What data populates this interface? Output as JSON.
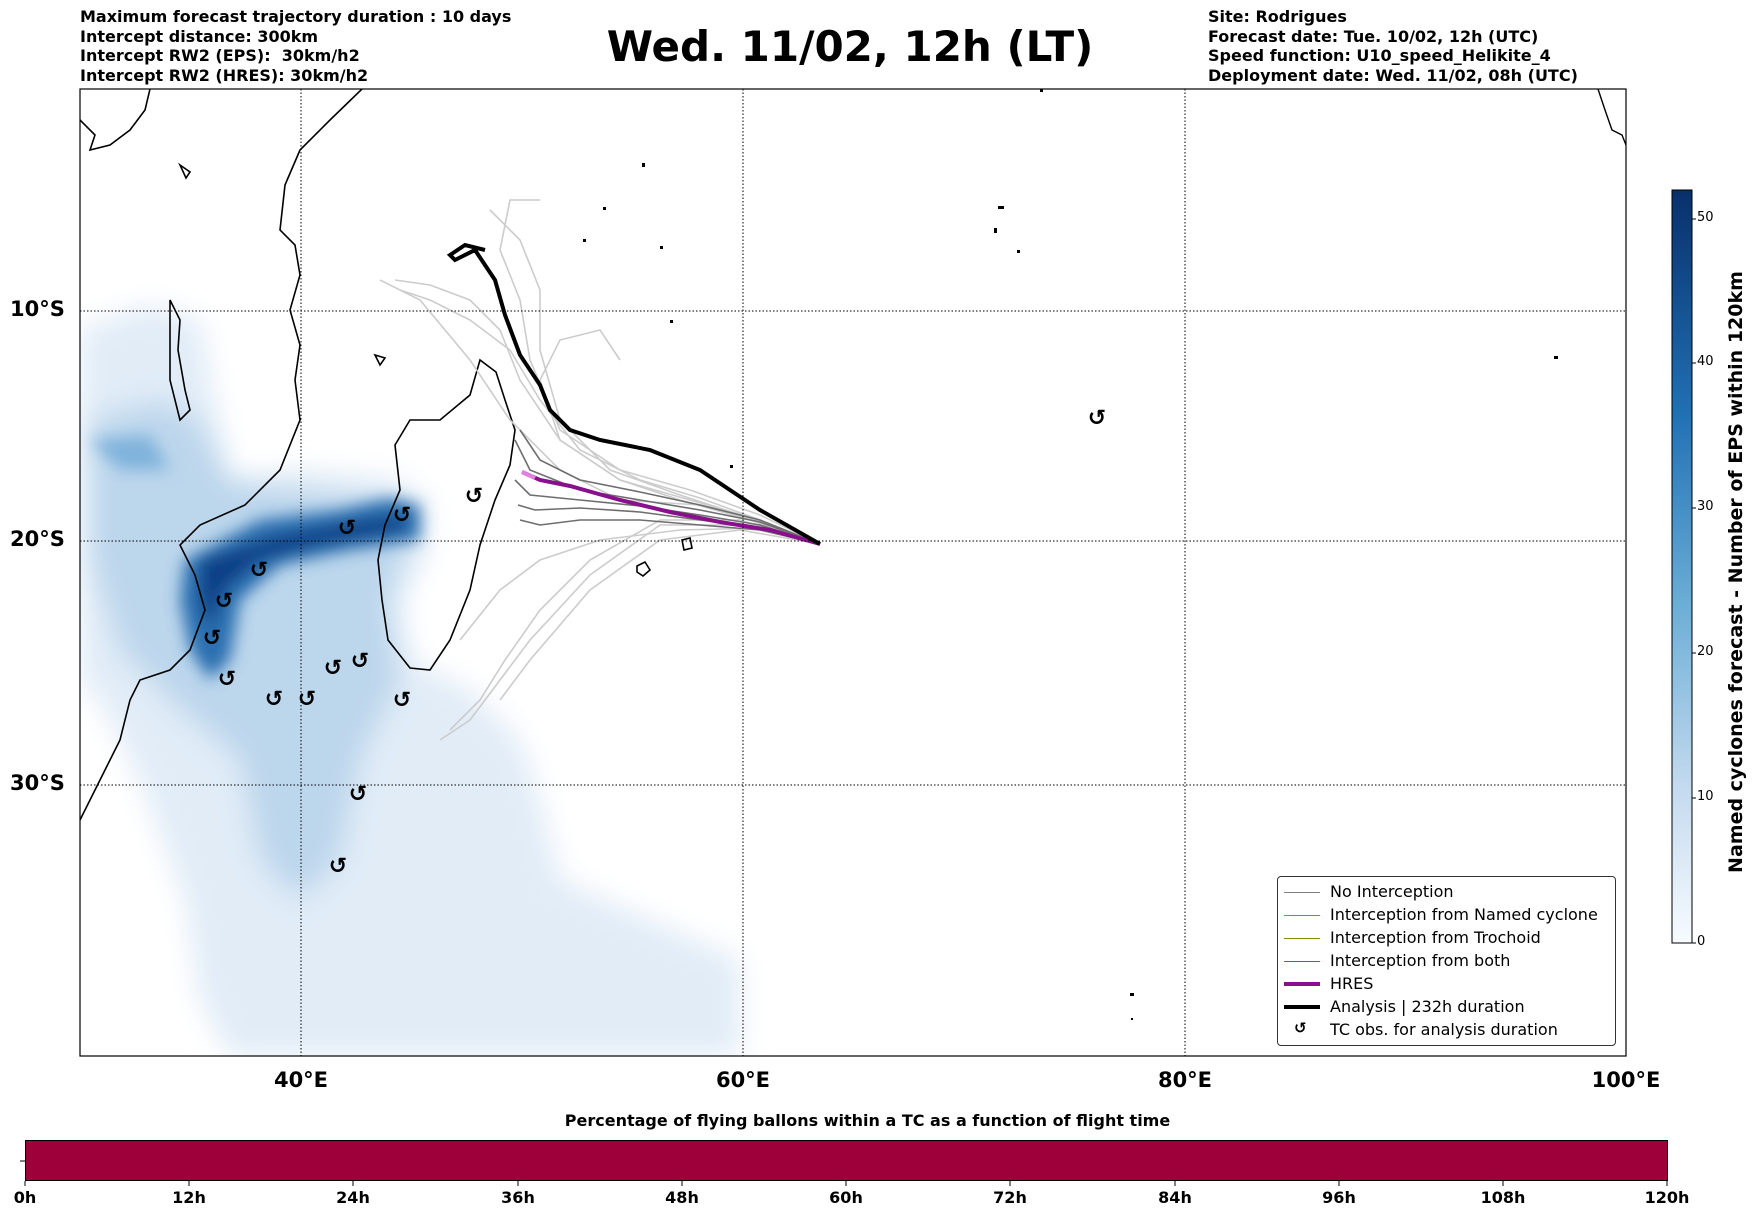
{
  "header": {
    "left_lines": [
      "Maximum forecast trajectory duration : 10 days",
      "Intercept distance: 300km",
      "Intercept RW2 (EPS):  30km/h2",
      "Intercept RW2 (HRES): 30km/h2"
    ],
    "title": "Wed. 11/02, 12h (LT)",
    "right_lines": [
      "Site: Rodrigues",
      "Forecast date: Tue. 10/02, 12h (UTC)",
      "Speed function: U10_speed_Helikite_4",
      "Deployment date: Wed. 11/02, 08h (UTC)"
    ]
  },
  "map": {
    "lat_labels": [
      "10°S",
      "20°S",
      "30°S"
    ],
    "lon_labels": [
      "40°E",
      "60°E",
      "80°E",
      "100°E"
    ],
    "tc_symbol": "↺",
    "colors": {
      "density_light": "#dce9f6",
      "density_mid": "#9fc6e4",
      "density_dark": "#08458a",
      "eps_track": "#cfcfcf",
      "eps_track_dark": "#6e6e6e",
      "hres": "#8a0f8c",
      "analysis": "#000000"
    }
  },
  "legend": {
    "items": [
      {
        "label": "No Interception",
        "color": "#808080",
        "width": 1.5,
        "type": "line"
      },
      {
        "label": "Interception from Named cyclone",
        "color": "#f05a28",
        "width": 1.5,
        "type": "line"
      },
      {
        "label": "Interception from Trochoid",
        "color": "#8b8b00",
        "width": 1.5,
        "type": "line"
      },
      {
        "label": "Interception from both",
        "color": "#1a9a1a",
        "width": 1.5,
        "type": "line"
      },
      {
        "label": "HRES",
        "color": "#8a0f8c",
        "width": 4,
        "type": "line"
      },
      {
        "label": "Analysis | 232h duration",
        "color": "#000000",
        "width": 4,
        "type": "line"
      },
      {
        "label": "TC obs. for analysis duration",
        "color": "#000000",
        "width": 0,
        "type": "icon",
        "icon": "↺"
      }
    ]
  },
  "colorbar": {
    "title": "Named cyclones forecast - Number of EPS within 120km",
    "ticks": [
      "0",
      "10",
      "20",
      "30",
      "40",
      "50"
    ],
    "range": [
      0,
      52
    ]
  },
  "bottom": {
    "title": "Percentage of flying ballons within a TC as a function of flight time",
    "ticks": [
      "0h",
      "12h",
      "24h",
      "36h",
      "48h",
      "60h",
      "72h",
      "84h",
      "96h",
      "108h",
      "120h"
    ],
    "bar_color": "#9e003a"
  }
}
